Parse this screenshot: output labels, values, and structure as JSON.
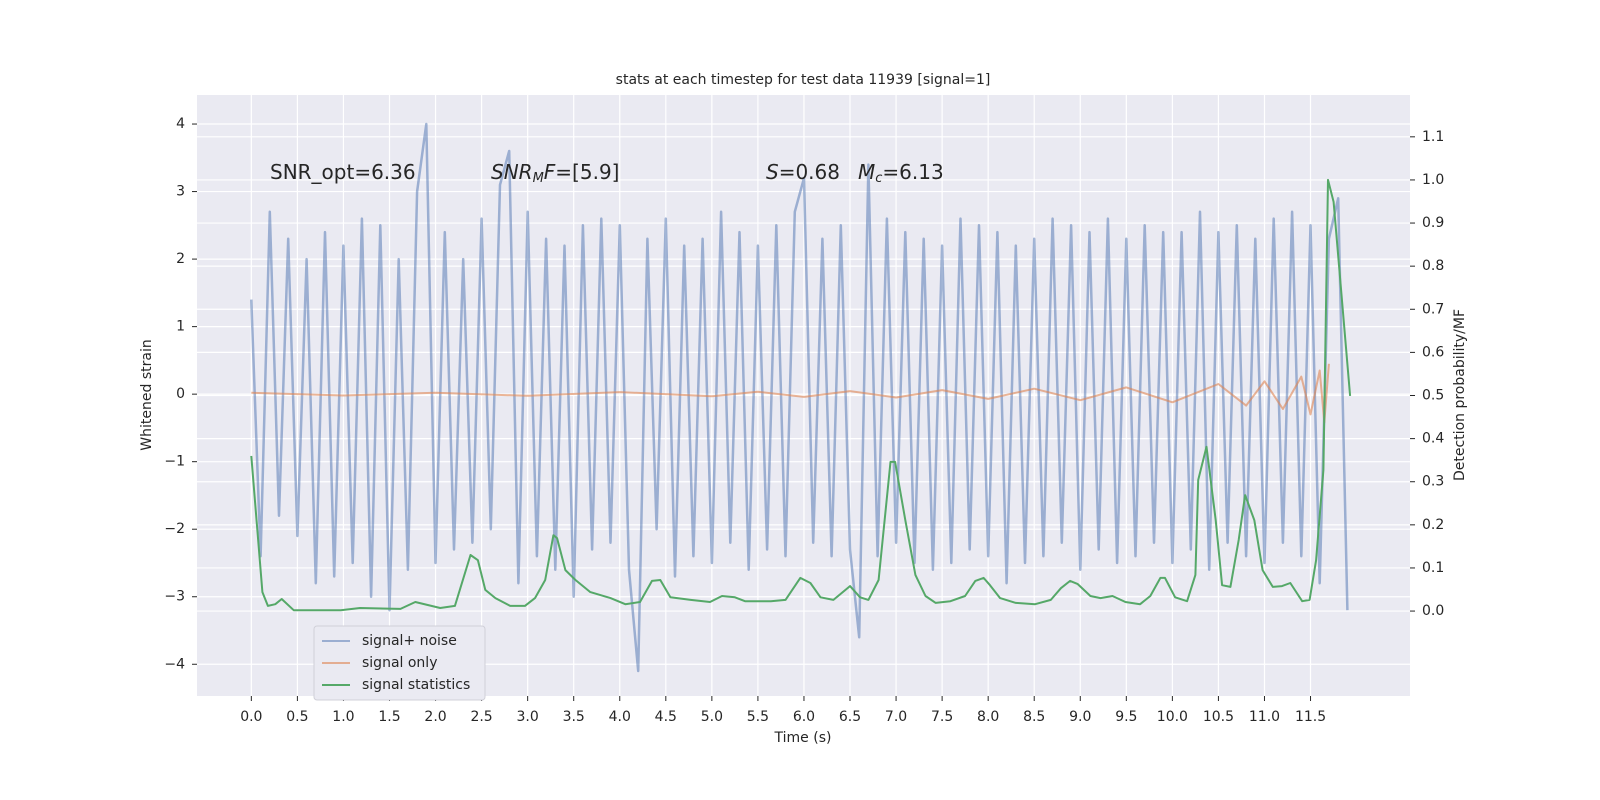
{
  "chart_data": {
    "type": "line",
    "title": "stats at each timestep for test data 11939 [signal=1]",
    "x_label": "Time (s)",
    "y_label": "Whitened strain",
    "y2_label": "Detection probability/MF",
    "annotations": [
      [
        {
          "text": "SNR_opt=6.36",
          "style": "plain"
        }
      ],
      [
        {
          "text": "SNR",
          "style": "italic"
        },
        {
          "text": "M",
          "style": "sub"
        },
        {
          "text": "F",
          "style": "italic"
        },
        {
          "text": "=[5.9]",
          "style": "plain"
        }
      ],
      [
        {
          "text": "S",
          "style": "italic"
        },
        {
          "text": "=0.68",
          "style": "plain"
        }
      ],
      [
        {
          "text": "M",
          "style": "italic"
        },
        {
          "text": "c",
          "style": "sub"
        },
        {
          "text": "=6.13",
          "style": "plain"
        }
      ]
    ],
    "xlim": [
      -0.59,
      12.58
    ],
    "xticks": [
      {
        "value": 0,
        "label": "0.0"
      },
      0.5,
      {
        "value": 1,
        "label": "1.0"
      },
      1.5,
      {
        "value": 2,
        "label": "2.0"
      },
      2.5,
      {
        "value": 3,
        "label": "3.0"
      },
      3.5,
      {
        "value": 4,
        "label": "4.0"
      },
      4.5,
      {
        "value": 5,
        "label": "5.0"
      },
      5.5,
      {
        "value": 6,
        "label": "6.0"
      },
      6.5,
      {
        "value": 7,
        "label": "7.0"
      },
      7.5,
      {
        "value": 8,
        "label": "8.0"
      },
      8.5,
      {
        "value": 9,
        "label": "9.0"
      },
      9.5,
      {
        "value": 10,
        "label": "10.0"
      },
      10.5,
      {
        "value": 11,
        "label": "11.0"
      },
      11.5
    ],
    "ylim": [
      -4.47,
      4.43
    ],
    "yticks": [
      {
        "value": -4,
        "label": "−4"
      },
      {
        "value": -3,
        "label": "−3"
      },
      {
        "value": -2,
        "label": "−2"
      },
      {
        "value": -1,
        "label": "−1"
      },
      0,
      1,
      2,
      3,
      4
    ],
    "y2lim": [
      -0.197,
      1.197
    ],
    "y2ticks": [
      {
        "value": 0,
        "label": "0.0"
      },
      0.1,
      0.2,
      0.3,
      0.4,
      0.5,
      0.6,
      0.7,
      0.8,
      0.9,
      {
        "value": 1,
        "label": "1.0"
      },
      1.1
    ],
    "grid": true,
    "legend": "lower left",
    "series": [
      {
        "name": "signal+ noise",
        "color": "#4c72b0",
        "opacity": 0.5,
        "x": [
          0,
          0.1,
          0.2,
          0.3,
          0.4,
          0.5,
          0.6,
          0.7,
          0.8,
          0.9,
          1,
          1.1,
          1.2,
          1.3,
          1.4,
          1.5,
          1.6,
          1.7,
          1.8,
          1.9,
          2,
          2.1,
          2.2,
          2.3,
          2.4,
          2.5,
          2.6,
          2.7,
          2.8,
          2.9,
          3,
          3.1,
          3.2,
          3.3,
          3.4,
          3.5,
          3.6,
          3.7,
          3.8,
          3.9,
          4,
          4.1,
          4.2,
          4.3,
          4.4,
          4.5,
          4.6,
          4.7,
          4.8,
          4.9,
          5,
          5.1,
          5.2,
          5.3,
          5.4,
          5.5,
          5.6,
          5.7,
          5.8,
          5.9,
          6,
          6.1,
          6.2,
          6.3,
          6.4,
          6.5,
          6.6,
          6.7,
          6.8,
          6.9,
          7,
          7.1,
          7.2,
          7.3,
          7.4,
          7.5,
          7.6,
          7.7,
          7.8,
          7.9,
          8,
          8.1,
          8.2,
          8.3,
          8.4,
          8.5,
          8.6,
          8.7,
          8.8,
          8.9,
          9,
          9.1,
          9.2,
          9.3,
          9.4,
          9.5,
          9.6,
          9.7,
          9.8,
          9.9,
          10,
          10.1,
          10.2,
          10.3,
          10.4,
          10.5,
          10.6,
          10.7,
          10.8,
          10.9,
          11,
          11.1,
          11.2,
          11.3,
          11.4,
          11.5,
          11.6,
          11.7,
          11.8,
          11.9
        ],
        "values": [
          1.4,
          -2.4,
          2.7,
          -1.8,
          2.3,
          -2.1,
          2.0,
          -2.8,
          2.4,
          -2.7,
          2.2,
          -2.5,
          2.6,
          -3.0,
          2.5,
          -3.2,
          2.0,
          -2.6,
          3.0,
          4.0,
          -2.5,
          2.4,
          -2.3,
          2.0,
          -2.2,
          2.6,
          -2.0,
          3.1,
          3.6,
          -2.8,
          2.7,
          -2.4,
          2.3,
          -2.6,
          2.2,
          -3.0,
          2.5,
          -2.3,
          2.6,
          -2.2,
          2.5,
          -2.6,
          -4.1,
          2.3,
          -2.0,
          2.6,
          -2.7,
          2.2,
          -2.4,
          2.3,
          -2.5,
          2.7,
          -2.2,
          2.4,
          -2.6,
          2.2,
          -2.3,
          2.5,
          -2.4,
          2.7,
          3.2,
          -2.2,
          2.3,
          -2.4,
          2.5,
          -2.3,
          -3.6,
          3.4,
          -2.4,
          2.6,
          -2.2,
          2.4,
          -2.5,
          2.3,
          -2.6,
          2.2,
          -2.5,
          2.6,
          -2.3,
          2.5,
          -2.4,
          2.4,
          -2.8,
          2.2,
          -2.5,
          2.3,
          -2.4,
          2.6,
          -2.2,
          2.5,
          -2.6,
          2.4,
          -2.3,
          2.6,
          -2.5,
          2.3,
          -2.4,
          2.5,
          -2.2,
          2.4,
          -2.5,
          2.4,
          -2.3,
          2.7,
          -2.6,
          2.4,
          -2.2,
          2.5,
          -2.4,
          2.3,
          -2.5,
          2.6,
          -2.2,
          2.7,
          -2.4,
          2.5,
          -2.8,
          2.3,
          2.9,
          -3.2
        ]
      },
      {
        "name": "signal only",
        "color": "#dd8452",
        "opacity": 0.6,
        "x": [
          0,
          1,
          2,
          3,
          4,
          5,
          5.5,
          6,
          6.5,
          7,
          7.5,
          8,
          8.5,
          9,
          9.5,
          10,
          10.5,
          10.8,
          11,
          11.2,
          11.4,
          11.5,
          11.6,
          11.65,
          11.7
        ],
        "values": [
          0.02,
          -0.02,
          0.02,
          -0.025,
          0.03,
          -0.03,
          0.035,
          -0.04,
          0.045,
          -0.05,
          0.06,
          -0.07,
          0.08,
          -0.09,
          0.1,
          -0.12,
          0.15,
          -0.17,
          0.19,
          -0.22,
          0.26,
          -0.3,
          0.35,
          -0.42,
          0.45
        ]
      },
      {
        "name": "signal statistics",
        "color": "#55a868",
        "opacity": 1,
        "axis": "y2",
        "x": [
          0,
          0.12,
          0.18,
          0.26,
          0.33,
          0.46,
          0.97,
          1.18,
          1.62,
          1.78,
          2.05,
          2.21,
          2.38,
          2.46,
          2.54,
          2.65,
          2.81,
          2.97,
          3.08,
          3.19,
          3.28,
          3.32,
          3.41,
          3.52,
          3.68,
          3.9,
          4.06,
          4.22,
          4.35,
          4.44,
          4.55,
          4.77,
          4.98,
          5.11,
          5.25,
          5.36,
          5.64,
          5.8,
          5.96,
          6.07,
          6.18,
          6.32,
          6.5,
          6.61,
          6.7,
          6.81,
          6.94,
          6.99,
          7.1,
          7.21,
          7.32,
          7.43,
          7.59,
          7.75,
          7.86,
          7.95,
          8.02,
          8.13,
          8.3,
          8.51,
          8.68,
          8.79,
          8.89,
          8.97,
          9.11,
          9.22,
          9.35,
          9.49,
          9.65,
          9.76,
          9.87,
          9.92,
          10.03,
          10.16,
          10.25,
          10.28,
          10.37,
          10.47,
          10.54,
          10.63,
          10.72,
          10.79,
          10.89,
          10.98,
          11.09,
          11.19,
          11.28,
          11.41,
          11.49,
          11.56,
          11.64,
          11.69,
          11.75,
          11.93
        ],
        "values": [
          0.36,
          0.044,
          0.012,
          0.016,
          0.028,
          0.002,
          0.002,
          0.007,
          0.005,
          0.021,
          0.007,
          0.012,
          0.13,
          0.118,
          0.049,
          0.03,
          0.012,
          0.012,
          0.03,
          0.072,
          0.176,
          0.169,
          0.095,
          0.072,
          0.044,
          0.03,
          0.016,
          0.021,
          0.07,
          0.072,
          0.032,
          0.026,
          0.021,
          0.035,
          0.032,
          0.023,
          0.023,
          0.026,
          0.077,
          0.065,
          0.032,
          0.026,
          0.058,
          0.032,
          0.026,
          0.072,
          0.346,
          0.346,
          0.211,
          0.084,
          0.035,
          0.019,
          0.023,
          0.035,
          0.07,
          0.077,
          0.06,
          0.03,
          0.019,
          0.016,
          0.026,
          0.053,
          0.07,
          0.063,
          0.035,
          0.03,
          0.035,
          0.021,
          0.016,
          0.035,
          0.077,
          0.077,
          0.032,
          0.023,
          0.084,
          0.304,
          0.381,
          0.211,
          0.06,
          0.056,
          0.165,
          0.269,
          0.211,
          0.095,
          0.056,
          0.058,
          0.065,
          0.023,
          0.026,
          0.118,
          0.327,
          1.0,
          0.949,
          0.499
        ]
      }
    ]
  }
}
